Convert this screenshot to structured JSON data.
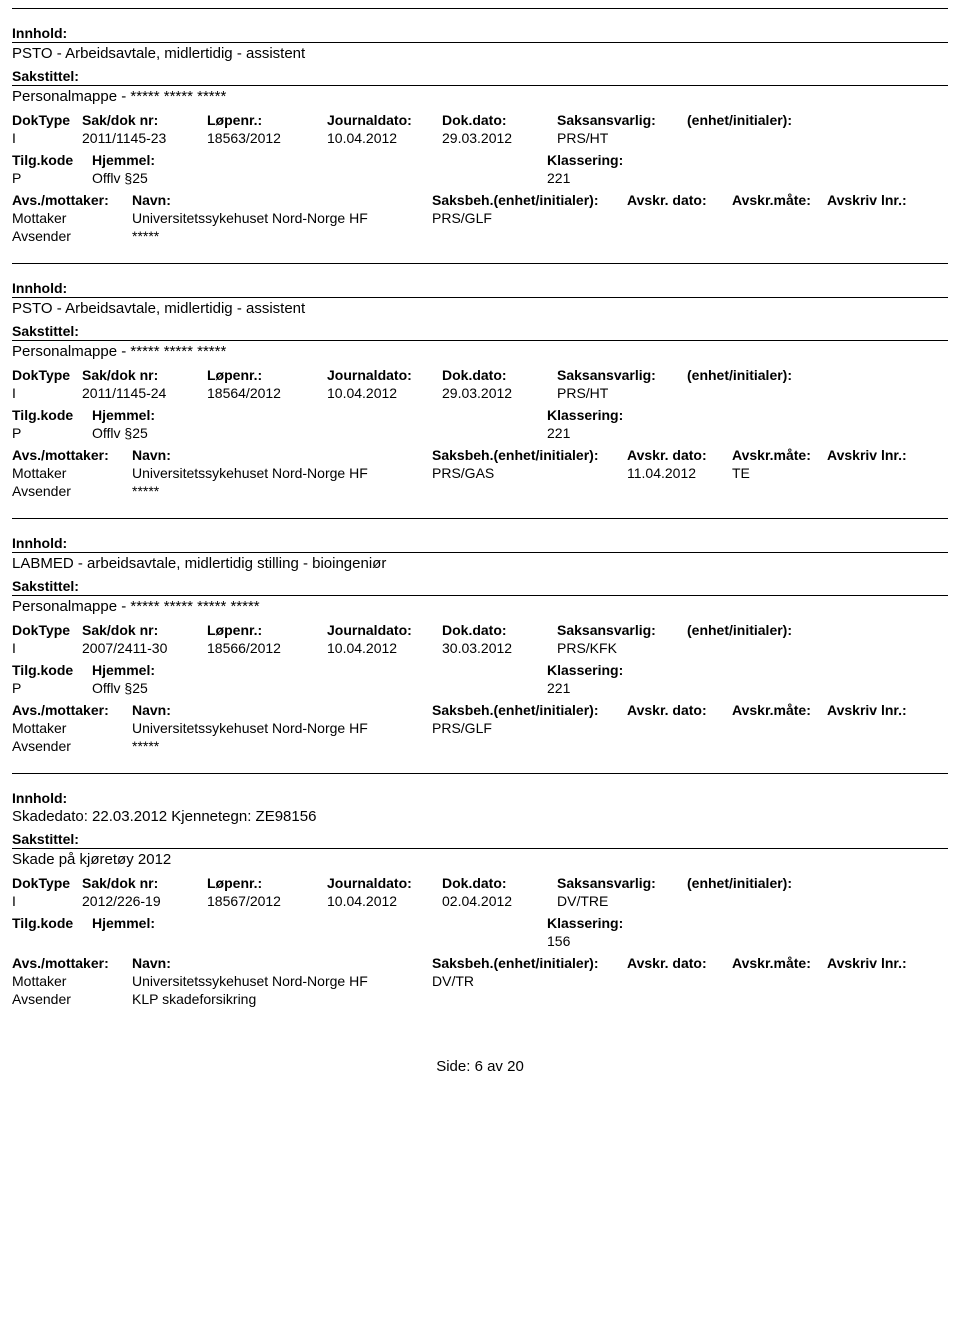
{
  "labels": {
    "innhold": "Innhold:",
    "sakstittel": "Sakstittel:",
    "doktype": "DokType",
    "sakdok": "Sak/dok nr:",
    "lopenr": "Løpenr.:",
    "journal": "Journaldato:",
    "dokdato": "Dok.dato:",
    "saksans": "Saksansvarlig:",
    "enhet": "(enhet/initialer):",
    "tilgkode": "Tilg.kode",
    "hjemmel": "Hjemmel:",
    "klass": "Klassering:",
    "avsmottaker": "Avs./mottaker:",
    "navn": "Navn:",
    "saksbeh": "Saksbeh.(enhet/initialer):",
    "avskrdato": "Avskr. dato:",
    "avskrmate": "Avskr.måte:",
    "avskrlnr": "Avskriv lnr.:",
    "mottaker": "Mottaker",
    "avsender": "Avsender"
  },
  "records": [
    {
      "innhold": "PSTO - Arbeidsavtale, midlertidig - assistent",
      "sakstittel": "Personalmappe - ***** ***** *****",
      "doktype": "I",
      "sakdok": "2011/1145-23",
      "lopenr": "18563/2012",
      "journal": "10.04.2012",
      "dokdato": "29.03.2012",
      "saksans": "PRS/HT",
      "enhet": "",
      "tilgkode": "P",
      "hjemmel": "Offlv §25",
      "klass": "221",
      "mottaker_navn": "Universitetssykehuset Nord-Norge HF",
      "mottaker_saksbeh": "PRS/GLF",
      "avskrdato": "",
      "avskrmate": "",
      "avskrlnr": "",
      "avsender_navn": "*****"
    },
    {
      "innhold": "PSTO - Arbeidsavtale, midlertidig - assistent",
      "sakstittel": "Personalmappe - ***** ***** *****",
      "doktype": "I",
      "sakdok": "2011/1145-24",
      "lopenr": "18564/2012",
      "journal": "10.04.2012",
      "dokdato": "29.03.2012",
      "saksans": "PRS/HT",
      "enhet": "",
      "tilgkode": "P",
      "hjemmel": "Offlv §25",
      "klass": "221",
      "mottaker_navn": "Universitetssykehuset Nord-Norge HF",
      "mottaker_saksbeh": "PRS/GAS",
      "avskrdato": "11.04.2012",
      "avskrmate": "TE",
      "avskrlnr": "",
      "avsender_navn": "*****"
    },
    {
      "innhold": "LABMED - arbeidsavtale, midlertidig stilling - bioingeniør",
      "sakstittel": "Personalmappe - ***** ***** ***** *****",
      "doktype": "I",
      "sakdok": "2007/2411-30",
      "lopenr": "18566/2012",
      "journal": "10.04.2012",
      "dokdato": "30.03.2012",
      "saksans": "PRS/KFK",
      "enhet": "",
      "tilgkode": "P",
      "hjemmel": "Offlv §25",
      "klass": "221",
      "mottaker_navn": "Universitetssykehuset Nord-Norge HF",
      "mottaker_saksbeh": "PRS/GLF",
      "avskrdato": "",
      "avskrmate": "",
      "avskrlnr": "",
      "avsender_navn": "*****"
    },
    {
      "innhold": "Skadedato: 22.03.2012 Kjennetegn: ZE98156",
      "sakstittel": "Skade på kjøretøy 2012",
      "doktype": "I",
      "sakdok": "2012/226-19",
      "lopenr": "18567/2012",
      "journal": "10.04.2012",
      "dokdato": "02.04.2012",
      "saksans": "DV/TRE",
      "enhet": "",
      "tilgkode": "",
      "hjemmel": "",
      "klass": "156",
      "mottaker_navn": "Universitetssykehuset Nord-Norge HF",
      "mottaker_saksbeh": "DV/TR",
      "avskrdato": "",
      "avskrmate": "",
      "avskrlnr": "",
      "avsender_navn": "KLP skadeforsikring"
    }
  ],
  "footer": {
    "side_label": "Side:",
    "page": "6",
    "av": "av",
    "total": "20"
  }
}
